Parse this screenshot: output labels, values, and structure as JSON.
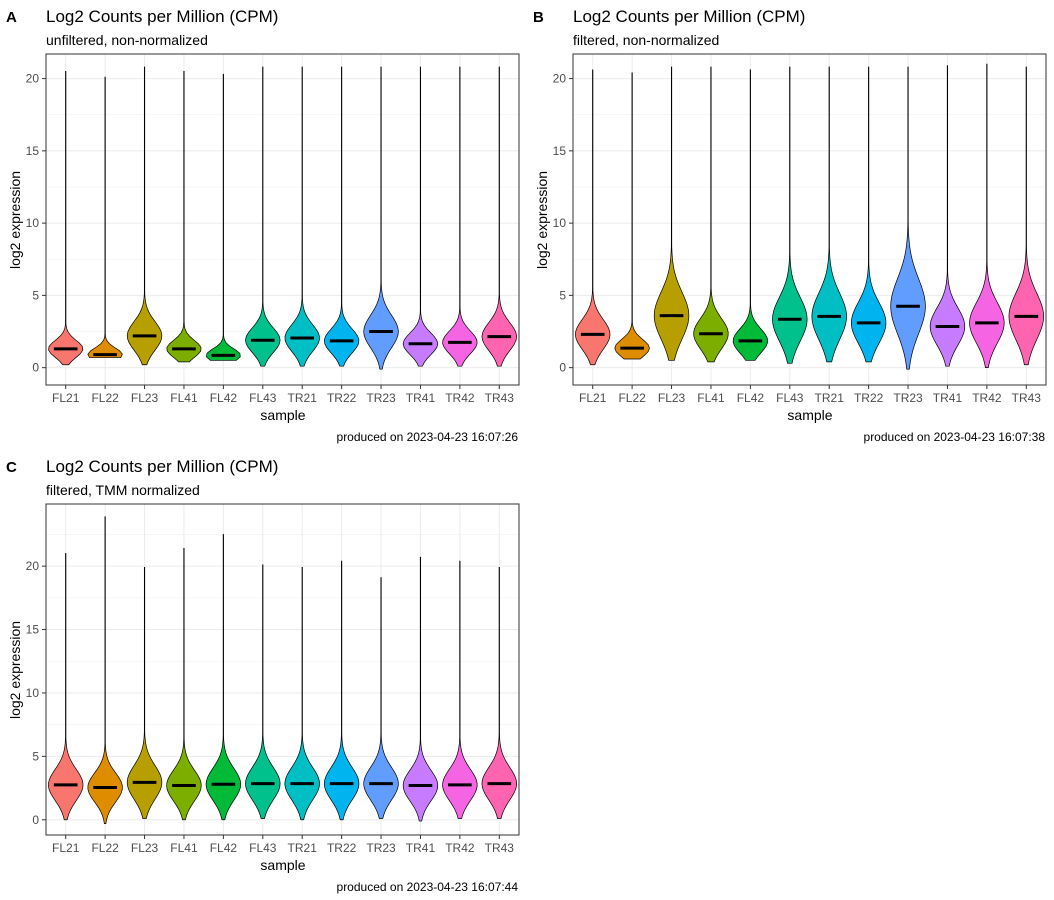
{
  "chart_data": [
    {
      "type": "violin",
      "panel_tag": "A",
      "title": "Log2 Counts per Million (CPM)",
      "subtitle": "unfiltered, non-normalized",
      "xlabel": "sample",
      "ylabel": "log2 expression",
      "caption": "produced on 2023-04-23 16:07:26",
      "ylim": [
        -1.2,
        21.7
      ],
      "yticks": [
        0,
        5,
        10,
        15,
        20
      ],
      "grid": true,
      "legend": "none",
      "categories": [
        "FL21",
        "FL22",
        "FL23",
        "FL41",
        "FL42",
        "FL43",
        "TR21",
        "TR22",
        "TR23",
        "TR41",
        "TR42",
        "TR43"
      ],
      "colors": [
        "#F8766D",
        "#DE8C00",
        "#B79F00",
        "#7CAE00",
        "#00BA38",
        "#00C08B",
        "#00BFC4",
        "#00B4F0",
        "#619CFF",
        "#C77CFF",
        "#F564E3",
        "#FF64B0"
      ],
      "min": [
        0.2,
        0.7,
        0.2,
        0.4,
        0.5,
        0.1,
        0.1,
        0.1,
        -0.1,
        0.1,
        0.1,
        0.1
      ],
      "max": [
        20.5,
        20.1,
        20.8,
        20.5,
        20.3,
        20.8,
        20.8,
        20.8,
        20.8,
        20.8,
        20.8,
        20.8
      ],
      "median": [
        1.3,
        0.9,
        2.2,
        1.3,
        0.85,
        1.9,
        2.05,
        1.85,
        2.5,
        1.65,
        1.75,
        2.15
      ]
    },
    {
      "type": "violin",
      "panel_tag": "B",
      "title": "Log2 Counts per Million (CPM)",
      "subtitle": "filtered, non-normalized",
      "xlabel": "sample",
      "ylabel": "log2 expression",
      "caption": "produced on 2023-04-23 16:07:38",
      "ylim": [
        -1.2,
        21.7
      ],
      "yticks": [
        0,
        5,
        10,
        15,
        20
      ],
      "grid": true,
      "legend": "none",
      "categories": [
        "FL21",
        "FL22",
        "FL23",
        "FL41",
        "FL42",
        "FL43",
        "TR21",
        "TR22",
        "TR23",
        "TR41",
        "TR42",
        "TR43"
      ],
      "colors": [
        "#F8766D",
        "#DE8C00",
        "#B79F00",
        "#7CAE00",
        "#00BA38",
        "#00C08B",
        "#00BFC4",
        "#00B4F0",
        "#619CFF",
        "#C77CFF",
        "#F564E3",
        "#FF64B0"
      ],
      "min": [
        0.2,
        0.6,
        0.5,
        0.4,
        0.5,
        0.3,
        0.4,
        0.4,
        -0.1,
        0.1,
        0.0,
        0.2
      ],
      "max": [
        20.6,
        20.4,
        20.8,
        20.8,
        20.6,
        20.8,
        20.8,
        20.8,
        20.8,
        20.9,
        21.0,
        20.8
      ],
      "median": [
        2.3,
        1.35,
        3.6,
        2.35,
        1.85,
        3.35,
        3.55,
        3.1,
        4.25,
        2.85,
        3.1,
        3.55
      ]
    },
    {
      "type": "violin",
      "panel_tag": "C",
      "title": "Log2 Counts per Million (CPM)",
      "subtitle": "filtered, TMM normalized",
      "xlabel": "sample",
      "ylabel": "log2 expression",
      "caption": "produced on 2023-04-23 16:07:44",
      "ylim": [
        -1.2,
        24.9
      ],
      "yticks": [
        0,
        5,
        10,
        15,
        20
      ],
      "grid": true,
      "legend": "none",
      "categories": [
        "FL21",
        "FL22",
        "FL23",
        "FL41",
        "FL42",
        "FL43",
        "TR21",
        "TR22",
        "TR23",
        "TR41",
        "TR42",
        "TR43"
      ],
      "colors": [
        "#F8766D",
        "#DE8C00",
        "#B79F00",
        "#7CAE00",
        "#00BA38",
        "#00C08B",
        "#00BFC4",
        "#00B4F0",
        "#619CFF",
        "#C77CFF",
        "#F564E3",
        "#FF64B0"
      ],
      "min": [
        0.0,
        -0.3,
        0.1,
        0.0,
        0.0,
        0.1,
        0.0,
        0.0,
        0.1,
        -0.1,
        0.1,
        0.1
      ],
      "max": [
        21.0,
        23.9,
        19.9,
        21.4,
        22.5,
        20.1,
        19.9,
        20.4,
        19.1,
        20.7,
        20.4,
        19.9
      ],
      "median": [
        2.75,
        2.55,
        2.95,
        2.7,
        2.8,
        2.85,
        2.85,
        2.85,
        2.85,
        2.7,
        2.75,
        2.85
      ]
    }
  ]
}
